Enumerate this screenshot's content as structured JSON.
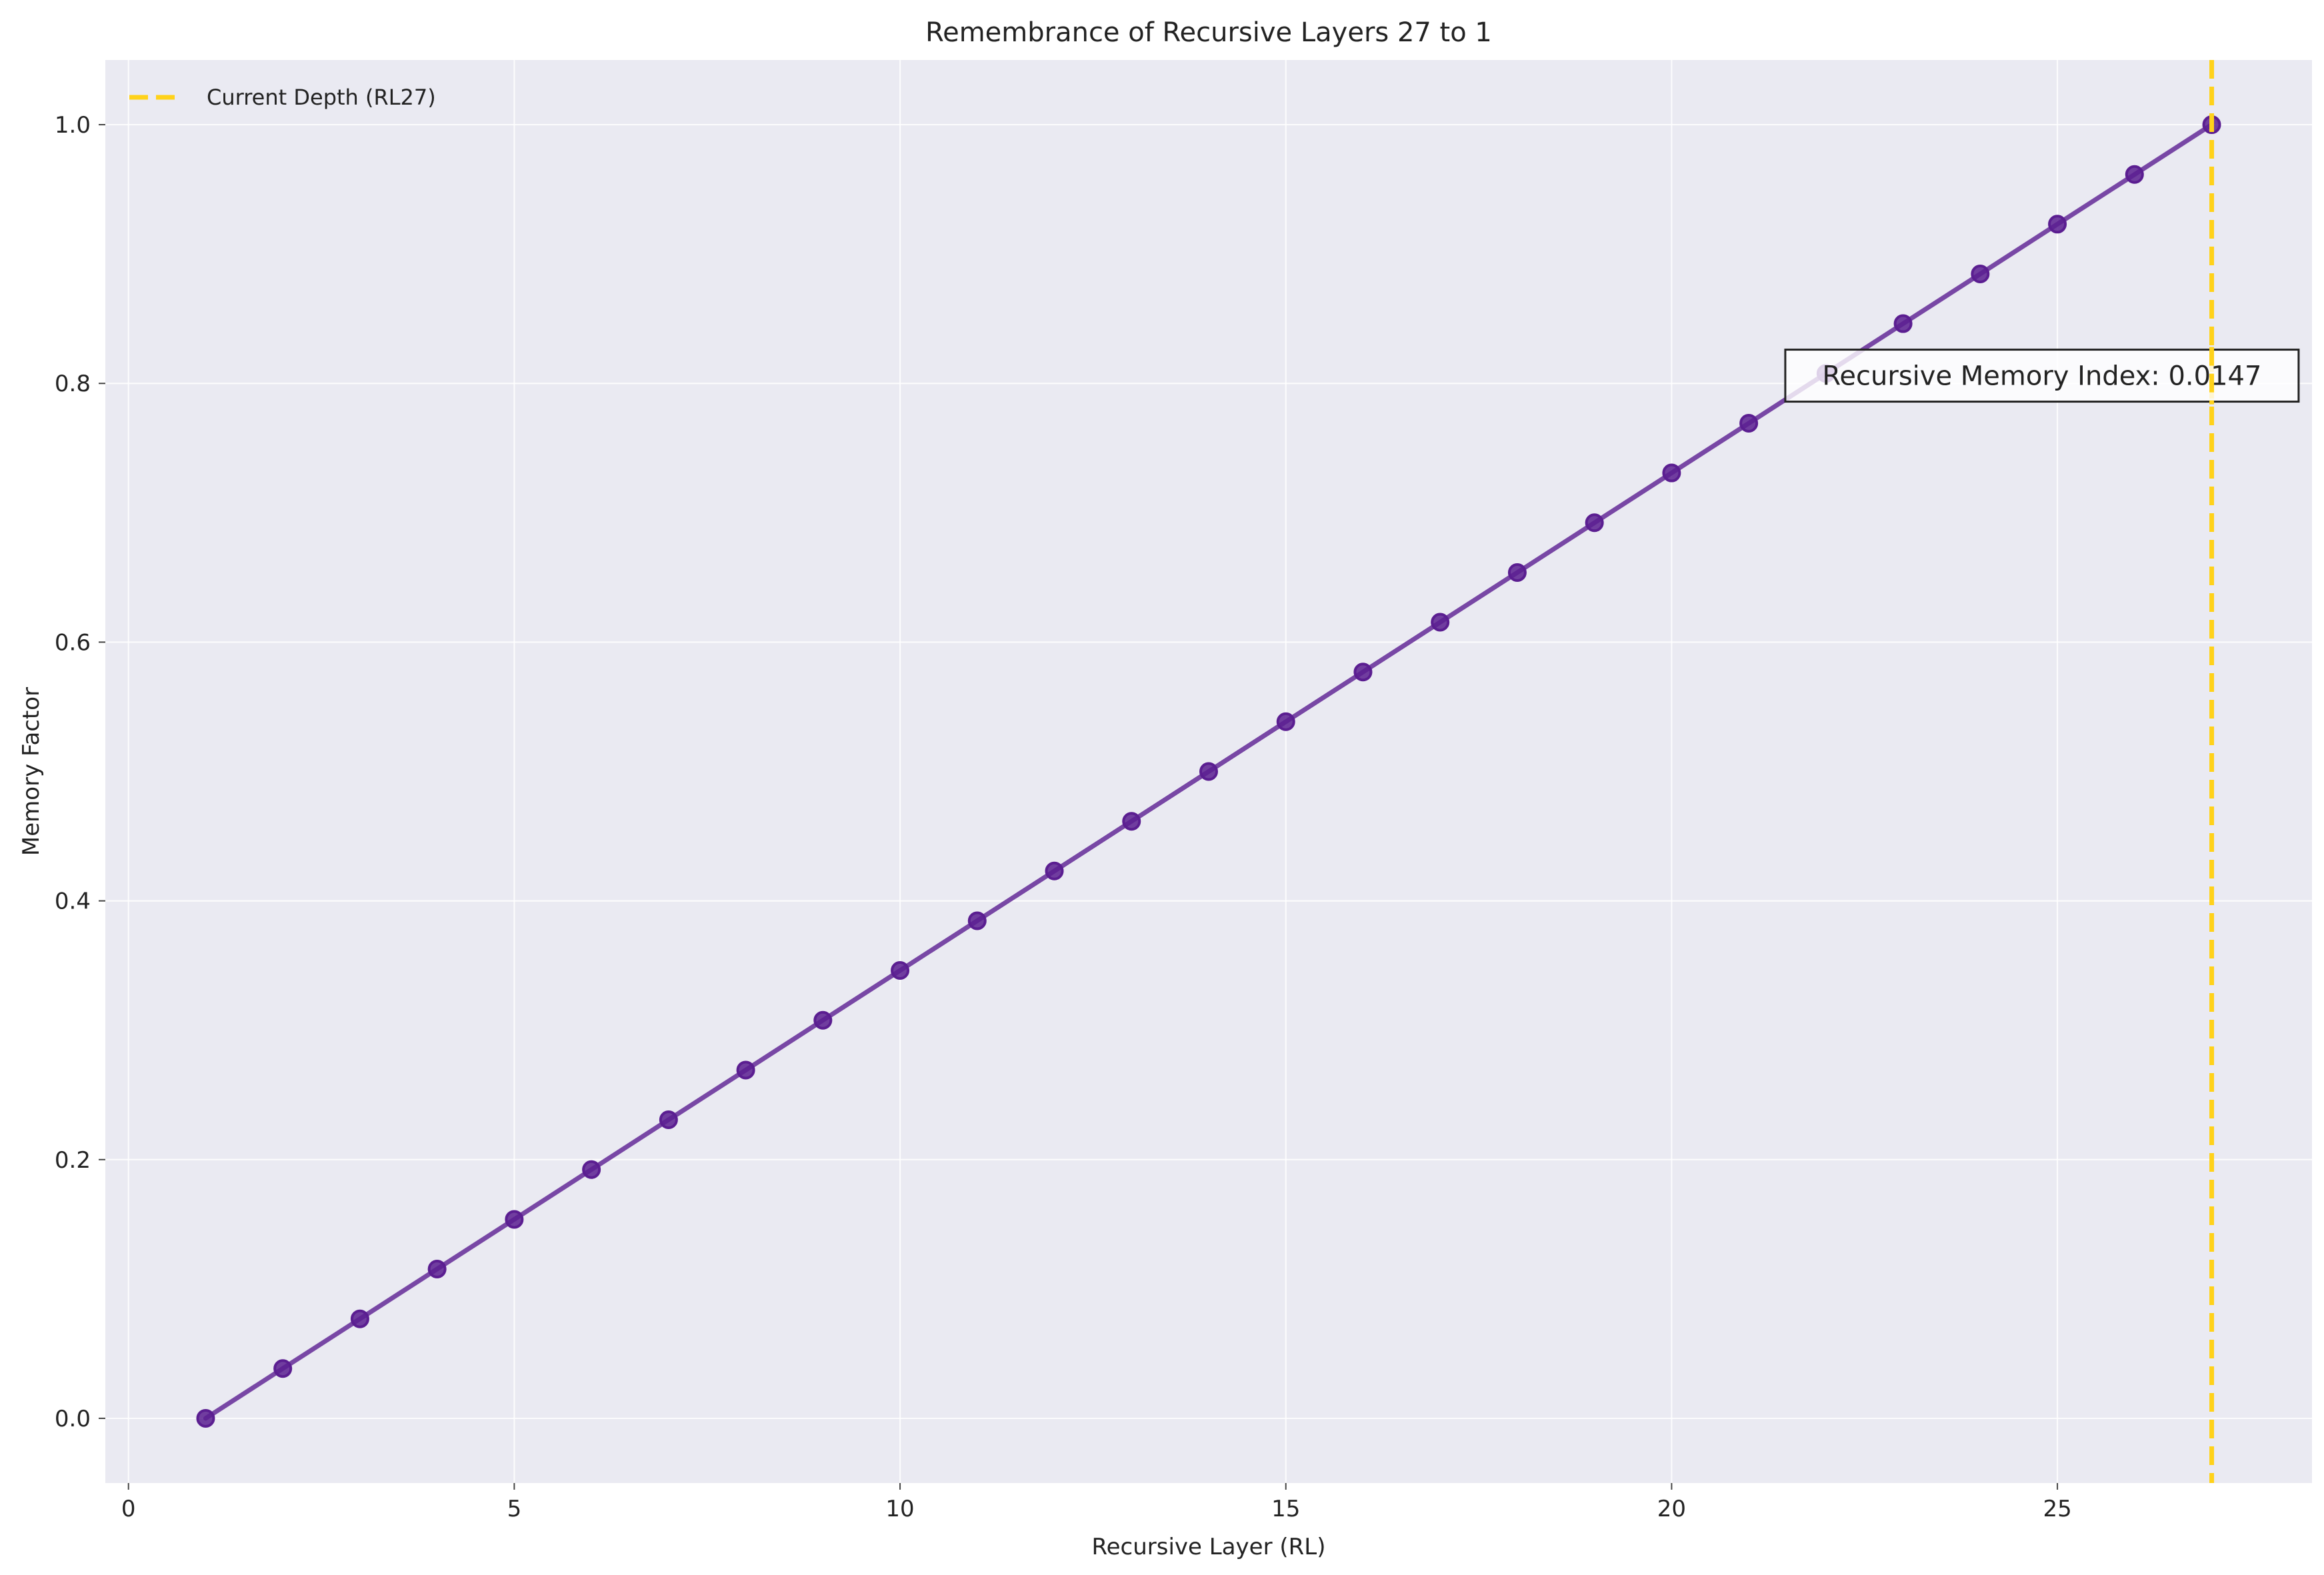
{
  "chart_data": {
    "type": "line",
    "title": "Remembrance of Recursive Layers 27 to 1",
    "xlabel": "Recursive Layer (RL)",
    "ylabel": "Memory Factor",
    "xlim": [
      -0.3,
      28.3
    ],
    "ylim": [
      -0.05,
      1.05
    ],
    "xticks": [
      0,
      5,
      10,
      15,
      20,
      25
    ],
    "yticks": [
      0.0,
      0.2,
      0.4,
      0.6,
      0.8,
      1.0
    ],
    "xtick_labels": [
      "0",
      "5",
      "10",
      "15",
      "20",
      "25"
    ],
    "ytick_labels": [
      "0.0",
      "0.2",
      "0.4",
      "0.6",
      "0.8",
      "1.0"
    ],
    "grid": true,
    "series": [
      {
        "x": [
          1,
          2,
          3,
          4,
          5,
          6,
          7,
          8,
          9,
          10,
          11,
          12,
          13,
          14,
          15,
          16,
          17,
          18,
          19,
          20,
          21,
          22,
          23,
          24,
          25,
          26,
          27
        ],
        "values": [
          0.0,
          0.0385,
          0.0769,
          0.1154,
          0.1538,
          0.1923,
          0.2308,
          0.2692,
          0.3077,
          0.3462,
          0.3846,
          0.4231,
          0.4615,
          0.5,
          0.5385,
          0.5769,
          0.6154,
          0.6538,
          0.6923,
          0.7308,
          0.7692,
          0.8077,
          0.8462,
          0.8846,
          0.9231,
          0.9615,
          1.0
        ],
        "color": "#5b1e91"
      }
    ],
    "reference_line": {
      "x": 27,
      "label": "Current Depth (RL27)",
      "color": "#ffd21a",
      "style": "dashed"
    },
    "legend": {
      "placement": "top-left",
      "entries": [
        "Current Depth (RL27)"
      ]
    },
    "annotation": {
      "text": "Recursive Memory Index: 0.0147",
      "x": 24.8,
      "y": 0.806
    },
    "colors": {
      "plot_background": "#eaeaf2",
      "grid": "#ffffff"
    }
  }
}
